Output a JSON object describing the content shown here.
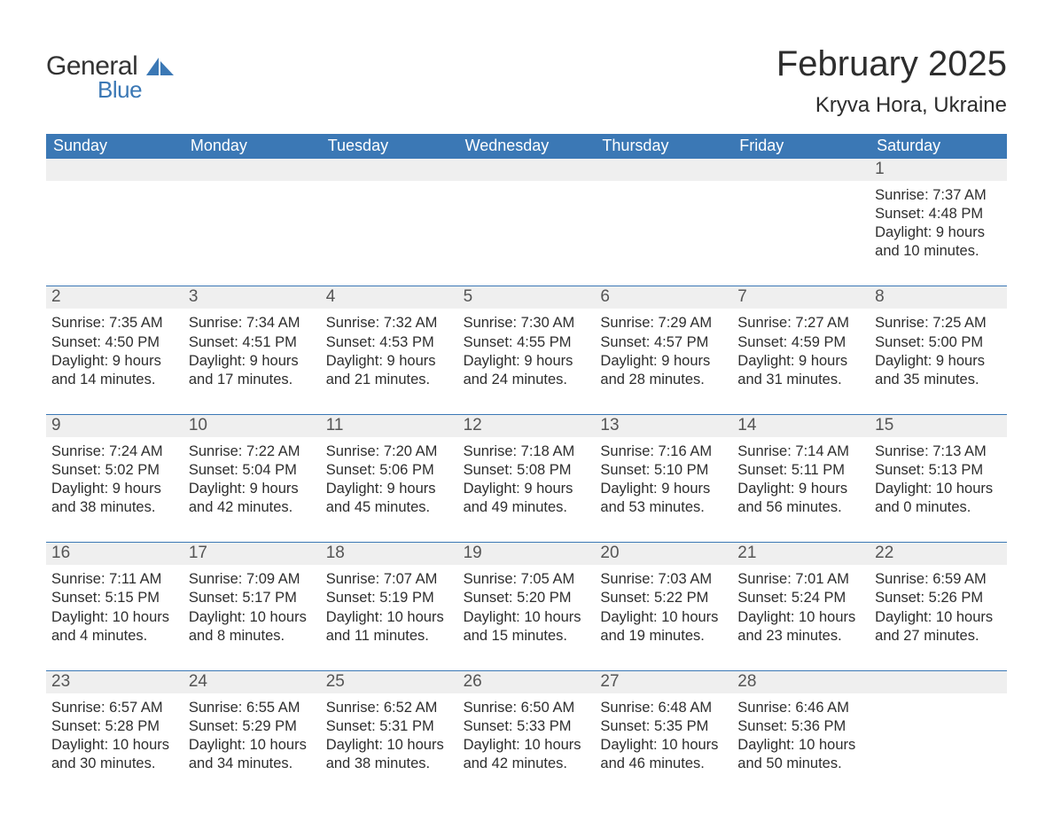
{
  "brand": {
    "word1": "General",
    "word2": "Blue",
    "accent_color": "#3b78b5"
  },
  "title": "February 2025",
  "location": "Kryva Hora, Ukraine",
  "colors": {
    "header_bg": "#3b78b5",
    "header_text": "#ffffff",
    "band_bg": "#efefef",
    "text": "#2e2e2e",
    "rule": "#3b78b5"
  },
  "fonts": {
    "title_pt": 40,
    "subtitle_pt": 24,
    "weekday_pt": 18,
    "daynum_pt": 19,
    "body_pt": 16
  },
  "weekdays": [
    "Sunday",
    "Monday",
    "Tuesday",
    "Wednesday",
    "Thursday",
    "Friday",
    "Saturday"
  ],
  "weeks": [
    [
      null,
      null,
      null,
      null,
      null,
      null,
      {
        "n": 1,
        "sunrise": "7:37 AM",
        "sunset": "4:48 PM",
        "daylight": "9 hours and 10 minutes."
      }
    ],
    [
      {
        "n": 2,
        "sunrise": "7:35 AM",
        "sunset": "4:50 PM",
        "daylight": "9 hours and 14 minutes."
      },
      {
        "n": 3,
        "sunrise": "7:34 AM",
        "sunset": "4:51 PM",
        "daylight": "9 hours and 17 minutes."
      },
      {
        "n": 4,
        "sunrise": "7:32 AM",
        "sunset": "4:53 PM",
        "daylight": "9 hours and 21 minutes."
      },
      {
        "n": 5,
        "sunrise": "7:30 AM",
        "sunset": "4:55 PM",
        "daylight": "9 hours and 24 minutes."
      },
      {
        "n": 6,
        "sunrise": "7:29 AM",
        "sunset": "4:57 PM",
        "daylight": "9 hours and 28 minutes."
      },
      {
        "n": 7,
        "sunrise": "7:27 AM",
        "sunset": "4:59 PM",
        "daylight": "9 hours and 31 minutes."
      },
      {
        "n": 8,
        "sunrise": "7:25 AM",
        "sunset": "5:00 PM",
        "daylight": "9 hours and 35 minutes."
      }
    ],
    [
      {
        "n": 9,
        "sunrise": "7:24 AM",
        "sunset": "5:02 PM",
        "daylight": "9 hours and 38 minutes."
      },
      {
        "n": 10,
        "sunrise": "7:22 AM",
        "sunset": "5:04 PM",
        "daylight": "9 hours and 42 minutes."
      },
      {
        "n": 11,
        "sunrise": "7:20 AM",
        "sunset": "5:06 PM",
        "daylight": "9 hours and 45 minutes."
      },
      {
        "n": 12,
        "sunrise": "7:18 AM",
        "sunset": "5:08 PM",
        "daylight": "9 hours and 49 minutes."
      },
      {
        "n": 13,
        "sunrise": "7:16 AM",
        "sunset": "5:10 PM",
        "daylight": "9 hours and 53 minutes."
      },
      {
        "n": 14,
        "sunrise": "7:14 AM",
        "sunset": "5:11 PM",
        "daylight": "9 hours and 56 minutes."
      },
      {
        "n": 15,
        "sunrise": "7:13 AM",
        "sunset": "5:13 PM",
        "daylight": "10 hours and 0 minutes."
      }
    ],
    [
      {
        "n": 16,
        "sunrise": "7:11 AM",
        "sunset": "5:15 PM",
        "daylight": "10 hours and 4 minutes."
      },
      {
        "n": 17,
        "sunrise": "7:09 AM",
        "sunset": "5:17 PM",
        "daylight": "10 hours and 8 minutes."
      },
      {
        "n": 18,
        "sunrise": "7:07 AM",
        "sunset": "5:19 PM",
        "daylight": "10 hours and 11 minutes."
      },
      {
        "n": 19,
        "sunrise": "7:05 AM",
        "sunset": "5:20 PM",
        "daylight": "10 hours and 15 minutes."
      },
      {
        "n": 20,
        "sunrise": "7:03 AM",
        "sunset": "5:22 PM",
        "daylight": "10 hours and 19 minutes."
      },
      {
        "n": 21,
        "sunrise": "7:01 AM",
        "sunset": "5:24 PM",
        "daylight": "10 hours and 23 minutes."
      },
      {
        "n": 22,
        "sunrise": "6:59 AM",
        "sunset": "5:26 PM",
        "daylight": "10 hours and 27 minutes."
      }
    ],
    [
      {
        "n": 23,
        "sunrise": "6:57 AM",
        "sunset": "5:28 PM",
        "daylight": "10 hours and 30 minutes."
      },
      {
        "n": 24,
        "sunrise": "6:55 AM",
        "sunset": "5:29 PM",
        "daylight": "10 hours and 34 minutes."
      },
      {
        "n": 25,
        "sunrise": "6:52 AM",
        "sunset": "5:31 PM",
        "daylight": "10 hours and 38 minutes."
      },
      {
        "n": 26,
        "sunrise": "6:50 AM",
        "sunset": "5:33 PM",
        "daylight": "10 hours and 42 minutes."
      },
      {
        "n": 27,
        "sunrise": "6:48 AM",
        "sunset": "5:35 PM",
        "daylight": "10 hours and 46 minutes."
      },
      {
        "n": 28,
        "sunrise": "6:46 AM",
        "sunset": "5:36 PM",
        "daylight": "10 hours and 50 minutes."
      },
      null
    ]
  ],
  "labels": {
    "sunrise": "Sunrise:",
    "sunset": "Sunset:",
    "daylight": "Daylight:"
  }
}
